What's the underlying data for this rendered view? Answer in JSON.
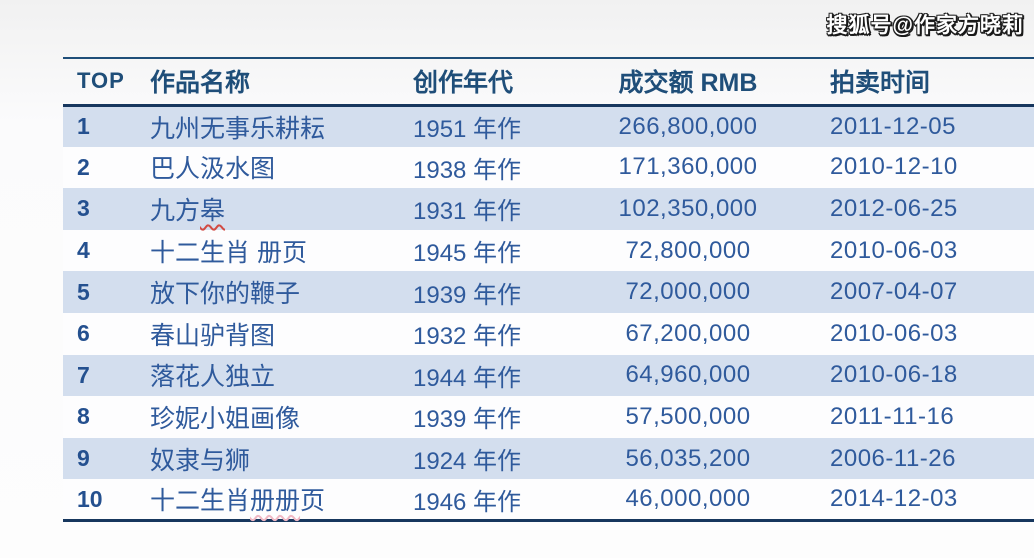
{
  "watermark": "搜狐号@作家方晓莉",
  "chart_data": {
    "type": "table",
    "columns": [
      "TOP",
      "作品名称",
      "创作年代",
      "成交额 RMB",
      "拍卖时间"
    ],
    "rows": [
      {
        "rank": "1",
        "name": "九州无事乐耕耘",
        "year": "1951 年作",
        "amount": "266,800,000",
        "date": "2011-12-05",
        "misspell_mark": "",
        "mark_style": ""
      },
      {
        "rank": "2",
        "name": "巴人汲水图",
        "year": "1938 年作",
        "amount": "171,360,000",
        "date": "2010-12-10",
        "misspell_mark": "",
        "mark_style": ""
      },
      {
        "rank": "3",
        "name": "九方皋",
        "year": "1931 年作",
        "amount": "102,350,000",
        "date": "2012-06-25",
        "misspell_mark": "皋",
        "mark_style": "red"
      },
      {
        "rank": "4",
        "name": "十二生肖 册页",
        "year": "1945 年作",
        "amount": "72,800,000",
        "date": "2010-06-03",
        "misspell_mark": "",
        "mark_style": ""
      },
      {
        "rank": "5",
        "name": "放下你的鞭子",
        "year": "1939 年作",
        "amount": "72,000,000",
        "date": "2007-04-07",
        "misspell_mark": "",
        "mark_style": ""
      },
      {
        "rank": "6",
        "name": "春山驴背图",
        "year": "1932 年作",
        "amount": "67,200,000",
        "date": "2010-06-03",
        "misspell_mark": "",
        "mark_style": ""
      },
      {
        "rank": "7",
        "name": "落花人独立",
        "year": "1944 年作",
        "amount": "64,960,000",
        "date": "2010-06-18",
        "misspell_mark": "",
        "mark_style": ""
      },
      {
        "rank": "8",
        "name": "珍妮小姐画像",
        "year": "1939 年作",
        "amount": "57,500,000",
        "date": "2011-11-16",
        "misspell_mark": "",
        "mark_style": ""
      },
      {
        "rank": "9",
        "name": "奴隶与狮",
        "year": "1924 年作",
        "amount": "56,035,200",
        "date": "2006-11-26",
        "misspell_mark": "",
        "mark_style": ""
      },
      {
        "rank": "10",
        "name": "十二生肖册册页",
        "year": "1946 年作",
        "amount": "46,000,000",
        "date": "2014-12-03",
        "misspell_mark": "册册",
        "mark_style": "faint"
      }
    ]
  },
  "colors": {
    "border_navy": "#17375e",
    "header_text": "#1f4e79",
    "body_text": "#2f5a9c",
    "stripe_row": "#d3deee",
    "plain_row": "#fdfdfe",
    "misspell_underline": "#d24a43"
  }
}
